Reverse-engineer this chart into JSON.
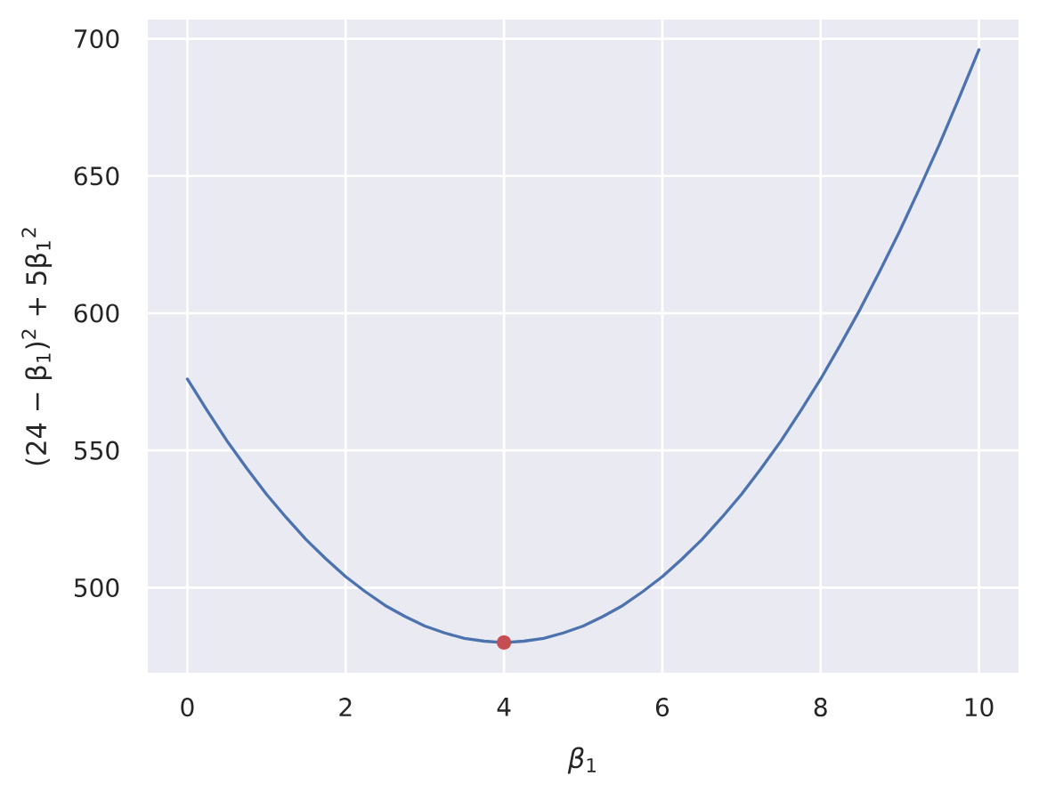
{
  "chart_data": {
    "type": "line",
    "xlabel": "*β*$_{1}$",
    "ylabel": "(24 − β$_{1}$)$^{2}$ + 5β$_{1}$$^{2}$",
    "series": [
      {
        "color": "#4c72b0",
        "x": [
          0,
          0.25,
          0.5,
          0.75,
          1,
          1.25,
          1.5,
          1.75,
          2,
          2.25,
          2.5,
          2.75,
          3,
          3.25,
          3.5,
          3.75,
          4,
          4.25,
          4.5,
          4.75,
          5,
          5.25,
          5.5,
          5.75,
          6,
          6.25,
          6.5,
          6.75,
          7,
          7.25,
          7.5,
          7.75,
          8,
          8.25,
          8.5,
          8.75,
          9,
          9.25,
          9.5,
          9.75,
          10
        ],
        "values": [
          576,
          564.5,
          553.5,
          543.5,
          534,
          525.5,
          517.5,
          510.5,
          504,
          498.5,
          493.5,
          489.5,
          486,
          483.5,
          481.5,
          480.5,
          480,
          480.5,
          481.5,
          483.5,
          486,
          489.5,
          493.5,
          498.5,
          504,
          510.5,
          517.5,
          525.5,
          534,
          543.5,
          553.5,
          564.5,
          576,
          588.5,
          601.5,
          615.5,
          630,
          645.5,
          661.5,
          678.5,
          696
        ]
      },
      {
        "type": "scatter",
        "color": "#c44e52",
        "marker": "circle",
        "x": [
          4
        ],
        "values": [
          480
        ]
      }
    ],
    "xlim": [
      -0.5,
      10.5
    ],
    "ylim": [
      469,
      707
    ],
    "xticks": [
      0,
      2,
      4,
      6,
      8,
      10
    ],
    "yticks": [
      500,
      550,
      600,
      650,
      700
    ],
    "grid": true
  }
}
